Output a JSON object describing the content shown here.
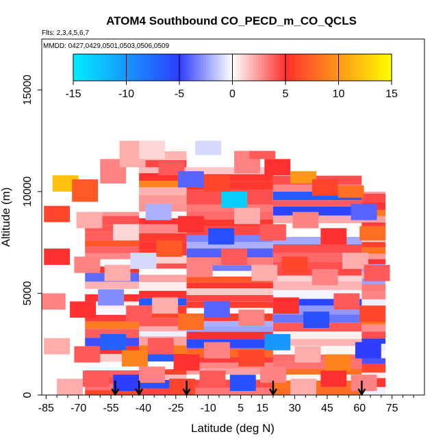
{
  "chart_data": {
    "type": "heatmap",
    "title": "ATOM4 Southbound CO_PECD_m_CO_QCLS",
    "subtitle_flights": "Flts: 2,3,4,5,6,7",
    "subtitle_dates": "MMDD: 0427,0429,0501,0503,0506,0509",
    "xlabel": "Latitude (deg N)",
    "ylabel": "Altitude (m)",
    "xlim": [
      -87,
      90
    ],
    "ylim": [
      0,
      17500
    ],
    "x_ticks": [
      -85,
      -70,
      -55,
      -40,
      -25,
      -10,
      5,
      15,
      30,
      45,
      60,
      75
    ],
    "x_minor_ticks": [
      -80,
      -75,
      -65,
      -60,
      -50,
      -45,
      -35,
      -30,
      -20,
      -15,
      -5,
      0,
      10,
      20,
      25,
      35,
      40,
      50,
      55,
      65,
      70,
      80,
      85
    ],
    "y_ticks": [
      0,
      5000,
      10000,
      15000
    ],
    "colorbar": {
      "range": [
        -15,
        15
      ],
      "ticks": [
        -15,
        -10,
        -5,
        0,
        5,
        10,
        15
      ],
      "colors": [
        "#00f0ff",
        "#2e3dff",
        "#ffffff",
        "#ff3030",
        "#ffff00"
      ],
      "color_positions": [
        -15,
        -5,
        0,
        5,
        15
      ]
    },
    "grid": false,
    "profile_arrow_latitudes": [
      -53,
      -42,
      -20,
      20,
      61
    ],
    "profile_bands": [
      {
        "lat": [
          -67,
          -42
        ],
        "alt": [
          0,
          9000
        ]
      },
      {
        "lat": [
          -42,
          -20
        ],
        "alt": [
          0,
          12200
        ]
      },
      {
        "lat": [
          -20,
          20
        ],
        "alt": [
          0,
          11200
        ]
      },
      {
        "lat": [
          20,
          61
        ],
        "alt": [
          0,
          10800
        ]
      },
      {
        "lat": [
          61,
          72
        ],
        "alt": [
          0,
          10000
        ]
      }
    ],
    "cell_values": [
      [
        -76,
        10000,
        10800,
        12
      ],
      [
        -67,
        9500,
        10600,
        7
      ],
      [
        -54,
        10400,
        11600,
        3
      ],
      [
        -45,
        11200,
        12500,
        2
      ],
      [
        -36,
        11600,
        12500,
        1
      ],
      [
        -27,
        10800,
        11500,
        4
      ],
      [
        -18,
        10200,
        11000,
        -4
      ],
      [
        -10,
        11800,
        12500,
        -1
      ],
      [
        -6,
        10000,
        10800,
        6
      ],
      [
        2,
        9200,
        10000,
        -13
      ],
      [
        8,
        10900,
        12000,
        3
      ],
      [
        15,
        11600,
        12000,
        4
      ],
      [
        22,
        10800,
        11600,
        5
      ],
      [
        34,
        10400,
        11000,
        10
      ],
      [
        44,
        9800,
        10600,
        6
      ],
      [
        56,
        9700,
        10300,
        8
      ],
      [
        -80,
        8500,
        9300,
        6
      ],
      [
        -65,
        8200,
        9000,
        2
      ],
      [
        -48,
        7600,
        8400,
        1
      ],
      [
        -33,
        8600,
        9400,
        -2
      ],
      [
        -18,
        8000,
        8800,
        5
      ],
      [
        -4,
        7400,
        8200,
        -6
      ],
      [
        8,
        8400,
        9200,
        2
      ],
      [
        20,
        7600,
        8400,
        4
      ],
      [
        35,
        8200,
        9000,
        3
      ],
      [
        48,
        7400,
        8200,
        5
      ],
      [
        62,
        8600,
        9400,
        -4
      ],
      [
        66,
        7600,
        8300,
        8
      ],
      [
        -80,
        6400,
        7200,
        5
      ],
      [
        -66,
        6000,
        6800,
        3
      ],
      [
        -52,
        5600,
        6400,
        2
      ],
      [
        -40,
        6200,
        7000,
        -1
      ],
      [
        -28,
        6800,
        7600,
        7
      ],
      [
        -14,
        5800,
        6600,
        3
      ],
      [
        2,
        6400,
        7200,
        4
      ],
      [
        16,
        5600,
        6400,
        2
      ],
      [
        30,
        6000,
        6800,
        6
      ],
      [
        44,
        5400,
        6200,
        3
      ],
      [
        58,
        6200,
        7000,
        2
      ],
      [
        68,
        5600,
        6400,
        4
      ],
      [
        -82,
        4200,
        5000,
        3
      ],
      [
        -68,
        3800,
        4600,
        5
      ],
      [
        -55,
        4400,
        5200,
        -3
      ],
      [
        -42,
        3600,
        4400,
        4
      ],
      [
        -30,
        4000,
        4800,
        2
      ],
      [
        -18,
        3200,
        4000,
        8
      ],
      [
        -6,
        3800,
        4600,
        -4
      ],
      [
        10,
        3400,
        4200,
        3
      ],
      [
        26,
        4000,
        4800,
        5
      ],
      [
        40,
        3300,
        4100,
        -6
      ],
      [
        54,
        4200,
        5000,
        4
      ],
      [
        66,
        3600,
        4400,
        6
      ],
      [
        -80,
        2000,
        2800,
        2
      ],
      [
        -66,
        1600,
        2400,
        4
      ],
      [
        -54,
        2200,
        3000,
        -7
      ],
      [
        -44,
        1400,
        2200,
        9
      ],
      [
        -32,
        2000,
        2800,
        4
      ],
      [
        -20,
        1200,
        2000,
        5
      ],
      [
        -6,
        1800,
        2600,
        3
      ],
      [
        10,
        1400,
        2200,
        6
      ],
      [
        22,
        2200,
        3000,
        -10
      ],
      [
        36,
        1600,
        2400,
        2
      ],
      [
        50,
        1200,
        2000,
        9
      ],
      [
        64,
        1800,
        2600,
        -5
      ],
      [
        -74,
        0,
        800,
        2
      ],
      [
        -62,
        400,
        1200,
        4
      ],
      [
        -48,
        200,
        1000,
        -5
      ],
      [
        -36,
        600,
        1400,
        3
      ],
      [
        -22,
        0,
        800,
        6
      ],
      [
        -8,
        400,
        1200,
        4
      ],
      [
        6,
        200,
        1000,
        -6
      ],
      [
        20,
        600,
        1400,
        3
      ],
      [
        34,
        0,
        800,
        2
      ],
      [
        48,
        400,
        1200,
        5
      ],
      [
        62,
        200,
        1000,
        3
      ]
    ]
  }
}
